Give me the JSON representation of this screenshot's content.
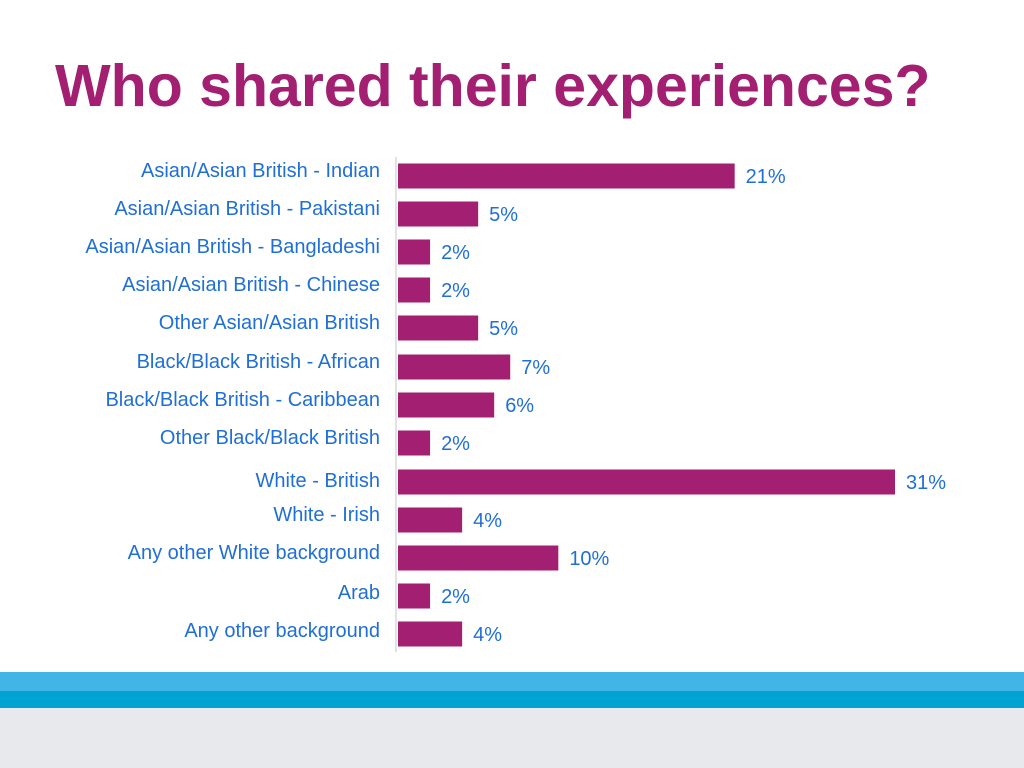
{
  "slide": {
    "title": "Who shared their experiences?"
  },
  "colors": {
    "title": "#a21f72",
    "bar": "#a21f72",
    "category_text": "#1f6fd6",
    "value_text": "#1f6fd6",
    "axis": "#d9d9d9",
    "band_light": "#41b6e6",
    "band_dark": "#00a3d2",
    "band_grey": "#e8e9ec"
  },
  "chart_data": {
    "type": "bar",
    "orientation": "horizontal",
    "title": "",
    "xlabel": "",
    "ylabel": "",
    "xlim": [
      0,
      31
    ],
    "grid": false,
    "legend": "none",
    "categories": [
      "Asian/Asian British - Indian",
      "Asian/Asian British - Pakistani",
      "Asian/Asian British - Bangladeshi",
      "Asian/Asian British - Chinese",
      "Other Asian/Asian British",
      "Black/Black British - African",
      "Black/Black British - Caribbean",
      "Other Black/Black British",
      "White - British",
      "White - Irish",
      "Any other White background",
      "Arab",
      "Any other background"
    ],
    "values": [
      21,
      5,
      2,
      2,
      5,
      7,
      6,
      2,
      31,
      4,
      10,
      2,
      4
    ],
    "value_labels": [
      "21%",
      "5%",
      "2%",
      "2%",
      "5%",
      "7%",
      "6%",
      "2%",
      "31%",
      "4%",
      "10%",
      "2%",
      "4%"
    ]
  }
}
